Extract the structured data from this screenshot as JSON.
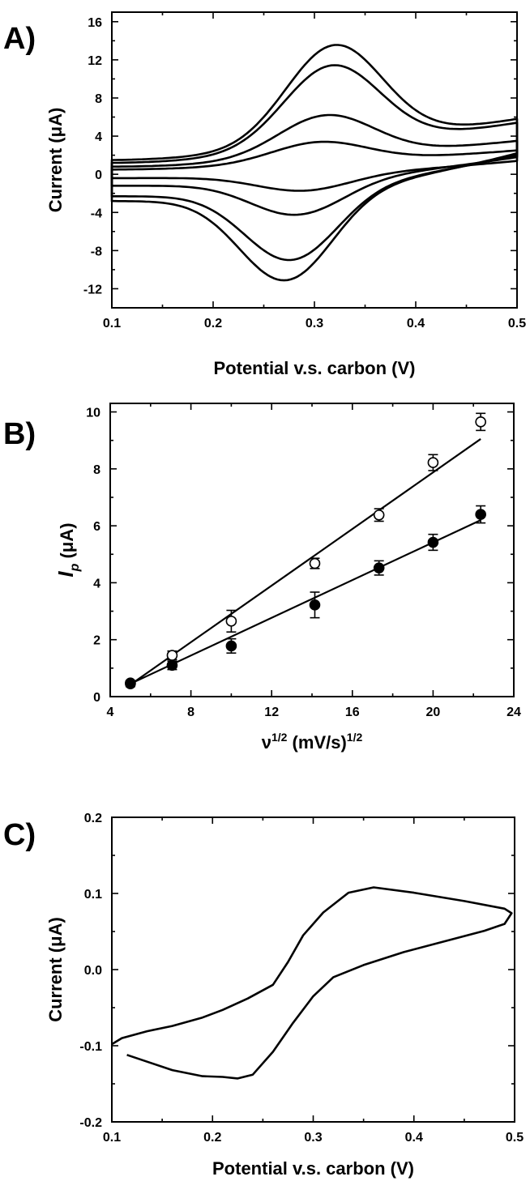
{
  "colors": {
    "ink": "#000000",
    "background": "#ffffff"
  },
  "chart_data": [
    {
      "panel_label": "A)",
      "type": "line",
      "xlabel": "Potential v.s. carbon (V)",
      "ylabel": "Current (μA)",
      "xlim": [
        0.1,
        0.5
      ],
      "ylim": [
        -14,
        17
      ],
      "xticks": [
        0.1,
        0.2,
        0.3,
        0.4,
        0.5
      ],
      "xtick_labels": [
        "0.1",
        "0.2",
        "0.3",
        "0.4",
        "0.5"
      ],
      "yticks": [
        -12,
        -8,
        -4,
        0,
        4,
        8,
        12,
        16
      ],
      "ytick_labels": [
        "-12",
        "-8",
        "-4",
        "0",
        "4",
        "8",
        "12",
        "16"
      ],
      "grid": false,
      "series": [
        {
          "peak_x": 0.322,
          "baseline_upper": [
            1.5,
            5.8
          ],
          "peak_upper": 14.0,
          "baseline_lower": [
            -2.8,
            2.2
          ],
          "peak_lower": -11.5,
          "peak_lower_x": 0.27
        },
        {
          "peak_x": 0.32,
          "baseline_upper": [
            1.2,
            5.4
          ],
          "peak_upper": 11.8,
          "baseline_lower": [
            -2.3,
            2.0
          ],
          "peak_lower": -9.3,
          "peak_lower_x": 0.275
        },
        {
          "peak_x": 0.315,
          "baseline_upper": [
            0.8,
            3.5
          ],
          "peak_upper": 6.4,
          "baseline_lower": [
            -1.2,
            1.8
          ],
          "peak_lower": -4.4,
          "peak_lower_x": 0.28
        },
        {
          "peak_x": 0.31,
          "baseline_upper": [
            0.5,
            2.5
          ],
          "peak_upper": 3.5,
          "baseline_lower": [
            -0.4,
            1.4
          ],
          "peak_lower": -1.8,
          "peak_lower_x": 0.285
        }
      ]
    },
    {
      "panel_label": "B)",
      "type": "scatter",
      "xlabel_main": "ν",
      "xlabel_sup1": "1/2",
      "xlabel_mid": " (mV/s)",
      "xlabel_sup2": "1/2",
      "ylabel_main": "I",
      "ylabel_sub": "p",
      "ylabel_rest": " (μA)",
      "xlim": [
        4,
        24
      ],
      "ylim": [
        0,
        10.3
      ],
      "xticks": [
        4,
        8,
        12,
        16,
        20,
        24
      ],
      "xtick_labels": [
        "4",
        "8",
        "12",
        "16",
        "20",
        "24"
      ],
      "yticks": [
        0,
        2,
        4,
        6,
        8,
        10
      ],
      "ytick_labels": [
        "0",
        "2",
        "4",
        "6",
        "8",
        "10"
      ],
      "grid": false,
      "series": [
        {
          "marker": "open-circle",
          "x": [
            5.0,
            7.07,
            10.0,
            14.14,
            17.32,
            20.0,
            22.36
          ],
          "y": [
            0.48,
            1.45,
            2.65,
            4.68,
            6.38,
            8.22,
            9.65
          ],
          "err": [
            0.08,
            0.15,
            0.38,
            0.18,
            0.22,
            0.28,
            0.3
          ],
          "fit": [
            [
              5.0,
              0.42
            ],
            [
              22.36,
              9.05
            ]
          ]
        },
        {
          "marker": "filled-circle",
          "x": [
            5.0,
            7.07,
            10.0,
            14.14,
            17.32,
            20.0,
            22.36
          ],
          "y": [
            0.45,
            1.1,
            1.78,
            3.22,
            4.52,
            5.42,
            6.4
          ],
          "err": [
            0.1,
            0.15,
            0.25,
            0.45,
            0.25,
            0.28,
            0.3
          ],
          "fit": [
            [
              5.0,
              0.45
            ],
            [
              22.36,
              6.2
            ]
          ]
        }
      ]
    },
    {
      "panel_label": "C)",
      "type": "line",
      "xlabel": "Potential v.s. carbon (V)",
      "ylabel": "Current (μA)",
      "xlim": [
        0.1,
        0.5
      ],
      "ylim": [
        -0.2,
        0.2
      ],
      "xticks": [
        0.1,
        0.2,
        0.3,
        0.4,
        0.5
      ],
      "xtick_labels": [
        "0.1",
        "0.2",
        "0.3",
        "0.4",
        "0.5"
      ],
      "yticks": [
        -0.2,
        -0.1,
        0.0,
        0.1,
        0.2
      ],
      "ytick_labels": [
        "-0.2",
        "-0.1",
        "0.0",
        "0.1",
        "0.2"
      ],
      "grid": false,
      "series": [
        {
          "x": [
            0.1,
            0.11,
            0.135,
            0.16,
            0.19,
            0.21,
            0.235,
            0.26,
            0.275,
            0.29,
            0.31,
            0.335,
            0.36,
            0.4,
            0.45,
            0.49,
            0.497,
            0.49,
            0.47,
            0.43,
            0.39,
            0.35,
            0.32,
            0.3,
            0.28,
            0.26,
            0.24,
            0.225,
            0.21,
            0.19,
            0.16,
            0.135,
            0.115
          ],
          "y": [
            -0.098,
            -0.09,
            -0.081,
            -0.074,
            -0.063,
            -0.053,
            -0.038,
            -0.02,
            0.01,
            0.045,
            0.075,
            0.101,
            0.108,
            0.101,
            0.09,
            0.08,
            0.074,
            0.06,
            0.051,
            0.037,
            0.023,
            0.006,
            -0.01,
            -0.035,
            -0.07,
            -0.108,
            -0.138,
            -0.143,
            -0.141,
            -0.14,
            -0.132,
            -0.121,
            -0.112
          ]
        }
      ]
    }
  ]
}
